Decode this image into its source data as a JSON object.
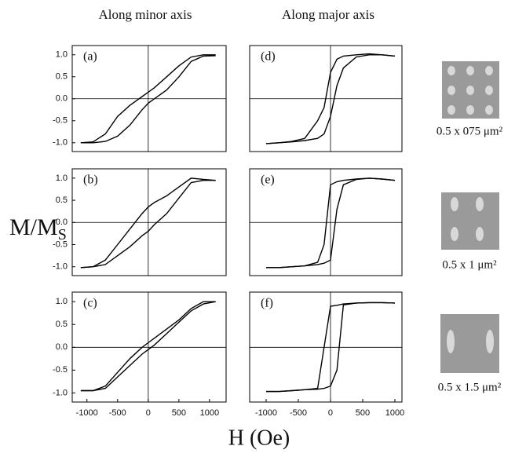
{
  "column_titles": [
    "Along minor axis",
    "Along major axis"
  ],
  "y_label": "M/M",
  "y_label_subscript": "S",
  "x_label": "H (Oe)",
  "samples": [
    {
      "label": "0.5 x 075 μm²"
    },
    {
      "label": "0.5 x 1 μm²"
    },
    {
      "label": "0.5 x 1.5 μm²"
    }
  ],
  "chart_data": [
    {
      "type": "line",
      "annotation": "(a)",
      "zero_lines": true,
      "x": [
        -1100,
        -900,
        -700,
        -500,
        -300,
        -100,
        0,
        100,
        300,
        500,
        700,
        900,
        1100
      ],
      "series": [
        {
          "color": "#000000",
          "values": [
            -1.0,
            -0.98,
            -0.8,
            -0.4,
            -0.15,
            0.05,
            0.15,
            0.25,
            0.5,
            0.75,
            0.95,
            1.0,
            1.0
          ]
        },
        {
          "color": "#000000",
          "values": [
            -1.0,
            -1.0,
            -0.97,
            -0.85,
            -0.6,
            -0.25,
            -0.1,
            0.0,
            0.2,
            0.5,
            0.85,
            0.97,
            0.98
          ]
        }
      ],
      "xlim": [
        -1240,
        1270
      ],
      "ylim": [
        -1.2,
        1.21
      ],
      "yticks": [
        {
          "value": -1,
          "label": "-1.0"
        },
        {
          "value": -0.5,
          "label": "-0.5"
        },
        {
          "value": 0,
          "label": "0.0"
        },
        {
          "value": 0.5,
          "label": "0.5"
        },
        {
          "value": 1,
          "label": "1.0"
        }
      ]
    },
    {
      "type": "line",
      "annotation": "(b)",
      "zero_lines": true,
      "x": [
        -1100,
        -900,
        -700,
        -500,
        -300,
        -100,
        0,
        100,
        300,
        500,
        700,
        900,
        1100
      ],
      "series": [
        {
          "color": "#000000",
          "values": [
            -1.02,
            -1.0,
            -0.85,
            -0.5,
            -0.15,
            0.2,
            0.35,
            0.45,
            0.6,
            0.8,
            1.0,
            0.97,
            0.95
          ]
        },
        {
          "color": "#000000",
          "values": [
            -1.02,
            -1.0,
            -0.95,
            -0.75,
            -0.55,
            -0.3,
            -0.2,
            -0.05,
            0.2,
            0.55,
            0.9,
            0.95,
            0.95
          ]
        }
      ],
      "xlim": [
        -1240,
        1270
      ],
      "ylim": [
        -1.2,
        1.21
      ],
      "yticks": [
        {
          "value": -1,
          "label": "-1.0"
        },
        {
          "value": -0.5,
          "label": "-0.5"
        },
        {
          "value": 0,
          "label": "0.0"
        },
        {
          "value": 0.5,
          "label": "0.5"
        },
        {
          "value": 1,
          "label": "1.0"
        }
      ]
    },
    {
      "type": "line",
      "annotation": "(c)",
      "zero_lines": true,
      "x": [
        -1100,
        -900,
        -700,
        -500,
        -300,
        -100,
        0,
        100,
        300,
        500,
        700,
        900,
        1100
      ],
      "series": [
        {
          "color": "#000000",
          "values": [
            -0.95,
            -0.95,
            -0.85,
            -0.55,
            -0.25,
            0.0,
            0.1,
            0.2,
            0.4,
            0.6,
            0.85,
            1.0,
            1.0
          ]
        },
        {
          "color": "#000000",
          "values": [
            -0.95,
            -0.95,
            -0.9,
            -0.65,
            -0.4,
            -0.15,
            -0.05,
            0.05,
            0.3,
            0.55,
            0.8,
            0.95,
            1.0
          ]
        }
      ],
      "xlim": [
        -1240,
        1270
      ],
      "ylim": [
        -1.2,
        1.21
      ],
      "yticks": [
        {
          "value": -1,
          "label": "-1.0"
        },
        {
          "value": -0.5,
          "label": "-0.5"
        },
        {
          "value": 0,
          "label": "0.0"
        },
        {
          "value": 0.5,
          "label": "0.5"
        },
        {
          "value": 1,
          "label": "1.0"
        }
      ],
      "xticks": [
        -1000,
        -500,
        0,
        500,
        1000
      ]
    },
    {
      "type": "line",
      "annotation": "(d)",
      "zero_lines": true,
      "x": [
        -1000,
        -800,
        -600,
        -400,
        -200,
        -100,
        0,
        100,
        200,
        400,
        600,
        800,
        1000
      ],
      "series": [
        {
          "color": "#000000",
          "values": [
            -1.02,
            -1.0,
            -0.97,
            -0.9,
            -0.5,
            -0.2,
            0.6,
            0.9,
            0.97,
            1.0,
            1.02,
            1.0,
            0.97
          ]
        },
        {
          "color": "#000000",
          "values": [
            -1.02,
            -1.0,
            -0.98,
            -0.95,
            -0.9,
            -0.8,
            -0.4,
            0.3,
            0.7,
            0.95,
            1.0,
            1.0,
            0.97
          ]
        }
      ],
      "xlim": [
        -1256,
        1110
      ],
      "ylim": [
        -1.2,
        1.21
      ]
    },
    {
      "type": "line",
      "annotation": "(e)",
      "zero_lines": true,
      "x": [
        -1000,
        -800,
        -600,
        -400,
        -200,
        -100,
        0,
        100,
        200,
        400,
        600,
        800,
        1000
      ],
      "series": [
        {
          "color": "#000000",
          "values": [
            -1.02,
            -1.02,
            -1.0,
            -0.98,
            -0.9,
            -0.5,
            0.85,
            0.92,
            0.95,
            0.98,
            1.0,
            0.98,
            0.95
          ]
        },
        {
          "color": "#000000",
          "values": [
            -1.02,
            -1.02,
            -1.0,
            -0.98,
            -0.95,
            -0.92,
            -0.85,
            0.3,
            0.85,
            0.97,
            1.0,
            0.98,
            0.95
          ]
        }
      ],
      "xlim": [
        -1256,
        1110
      ],
      "ylim": [
        -1.2,
        1.21
      ]
    },
    {
      "type": "line",
      "annotation": "(f)",
      "zero_lines": true,
      "x": [
        -1000,
        -800,
        -600,
        -400,
        -200,
        -100,
        0,
        100,
        200,
        400,
        600,
        800,
        1000
      ],
      "series": [
        {
          "color": "#000000",
          "values": [
            -0.97,
            -0.97,
            -0.95,
            -0.93,
            -0.9,
            0.0,
            0.9,
            0.92,
            0.95,
            0.97,
            0.98,
            0.98,
            0.97
          ]
        },
        {
          "color": "#000000",
          "values": [
            -0.97,
            -0.97,
            -0.95,
            -0.93,
            -0.92,
            -0.9,
            -0.85,
            -0.5,
            0.93,
            0.97,
            0.98,
            0.98,
            0.97
          ]
        }
      ],
      "xlim": [
        -1256,
        1110
      ],
      "ylim": [
        -1.2,
        1.21
      ],
      "xticks": [
        -1000,
        -500,
        0,
        500,
        1000
      ]
    }
  ]
}
